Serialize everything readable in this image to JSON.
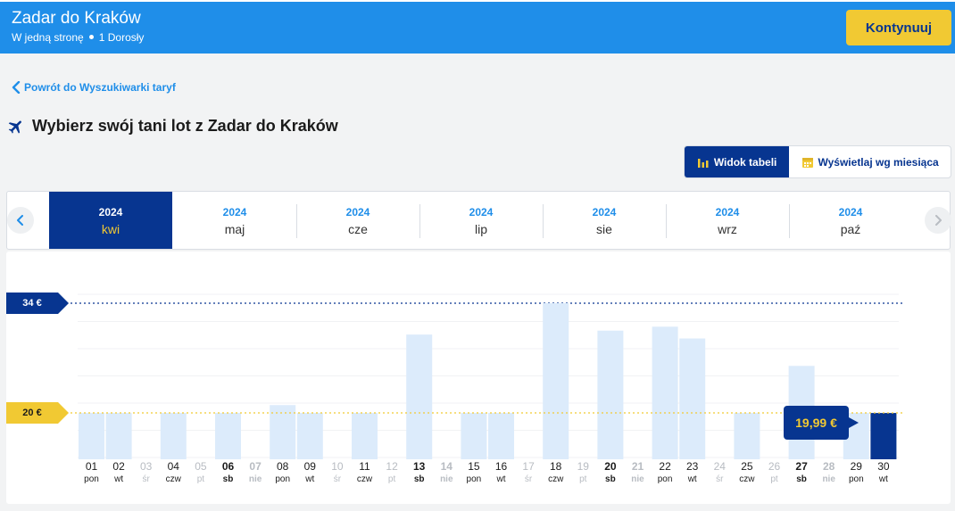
{
  "header": {
    "title": "Zadar do Kraków",
    "trip_type": "W jedną stronę",
    "passengers": "1 Dorosły",
    "continue_label": "Kontynuuj"
  },
  "back_link": "Powrót do Wyszukiwarki taryf",
  "page_heading": "Wybierz swój tani lot z Zadar do Kraków",
  "view_toggle": {
    "table_label": "Widok tabeli",
    "month_label": "Wyświetlaj wg miesiąca",
    "active": "table"
  },
  "months": [
    {
      "year": "2024",
      "month": "kwi",
      "active": true
    },
    {
      "year": "2024",
      "month": "maj",
      "active": false
    },
    {
      "year": "2024",
      "month": "cze",
      "active": false
    },
    {
      "year": "2024",
      "month": "lip",
      "active": false
    },
    {
      "year": "2024",
      "month": "sie",
      "active": false
    },
    {
      "year": "2024",
      "month": "wrz",
      "active": false
    },
    {
      "year": "2024",
      "month": "paź",
      "active": false
    }
  ],
  "colors": {
    "brand_blue": "#1f8ee9",
    "navy": "#073590",
    "yellow": "#f1c933",
    "bar": "#dcebfb",
    "bar_selected": "#073590"
  },
  "chart_data": {
    "type": "bar",
    "max_label": "34 €",
    "min_label": "20 €",
    "max_value": 34,
    "min_value": 19.99,
    "selected_price_label": "19,99 €",
    "selected_day": "30",
    "days": [
      {
        "day": "01",
        "weekday": "pon",
        "price": 20,
        "available": true,
        "weekend": false
      },
      {
        "day": "02",
        "weekday": "wt",
        "price": 20,
        "available": true,
        "weekend": false
      },
      {
        "day": "03",
        "weekday": "śr",
        "price": null,
        "available": false,
        "weekend": false
      },
      {
        "day": "04",
        "weekday": "czw",
        "price": 20,
        "available": true,
        "weekend": false
      },
      {
        "day": "05",
        "weekday": "pt",
        "price": null,
        "available": false,
        "weekend": false
      },
      {
        "day": "06",
        "weekday": "sb",
        "price": 20,
        "available": true,
        "weekend": true
      },
      {
        "day": "07",
        "weekday": "nie",
        "price": null,
        "available": false,
        "weekend": true
      },
      {
        "day": "08",
        "weekday": "pon",
        "price": 21,
        "available": true,
        "weekend": false
      },
      {
        "day": "09",
        "weekday": "wt",
        "price": 20,
        "available": true,
        "weekend": false
      },
      {
        "day": "10",
        "weekday": "śr",
        "price": null,
        "available": false,
        "weekend": false
      },
      {
        "day": "11",
        "weekday": "czw",
        "price": 20,
        "available": true,
        "weekend": false
      },
      {
        "day": "12",
        "weekday": "pt",
        "price": null,
        "available": false,
        "weekend": false
      },
      {
        "day": "13",
        "weekday": "sb",
        "price": 30,
        "available": true,
        "weekend": true
      },
      {
        "day": "14",
        "weekday": "nie",
        "price": null,
        "available": false,
        "weekend": true
      },
      {
        "day": "15",
        "weekday": "pon",
        "price": 20,
        "available": true,
        "weekend": false
      },
      {
        "day": "16",
        "weekday": "wt",
        "price": 20,
        "available": true,
        "weekend": false
      },
      {
        "day": "17",
        "weekday": "śr",
        "price": null,
        "available": false,
        "weekend": false
      },
      {
        "day": "18",
        "weekday": "czw",
        "price": 34,
        "available": true,
        "weekend": false
      },
      {
        "day": "19",
        "weekday": "pt",
        "price": null,
        "available": false,
        "weekend": false
      },
      {
        "day": "20",
        "weekday": "sb",
        "price": 30.5,
        "available": true,
        "weekend": true
      },
      {
        "day": "21",
        "weekday": "nie",
        "price": null,
        "available": false,
        "weekend": true
      },
      {
        "day": "22",
        "weekday": "pon",
        "price": 31,
        "available": true,
        "weekend": false
      },
      {
        "day": "23",
        "weekday": "wt",
        "price": 29.5,
        "available": true,
        "weekend": false
      },
      {
        "day": "24",
        "weekday": "śr",
        "price": null,
        "available": false,
        "weekend": false
      },
      {
        "day": "25",
        "weekday": "czw",
        "price": 20,
        "available": true,
        "weekend": false
      },
      {
        "day": "26",
        "weekday": "pt",
        "price": null,
        "available": false,
        "weekend": false
      },
      {
        "day": "27",
        "weekday": "sb",
        "price": 26,
        "available": true,
        "weekend": true
      },
      {
        "day": "28",
        "weekday": "nie",
        "price": null,
        "available": false,
        "weekend": true
      },
      {
        "day": "29",
        "weekday": "pon",
        "price": 20,
        "available": true,
        "weekend": false
      },
      {
        "day": "30",
        "weekday": "wt",
        "price": 19.99,
        "available": true,
        "weekend": false,
        "selected": true
      }
    ]
  }
}
